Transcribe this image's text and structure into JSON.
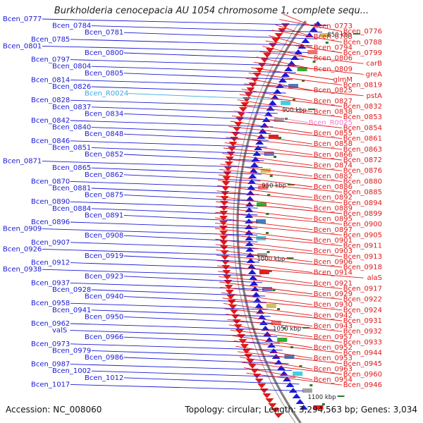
{
  "title": "Burkholderia cenocepacia AU 1054 chromosome 1, complete sequ...",
  "footer": {
    "accession": "Accession: NC_008060",
    "summary": "Topology: circular; Length: 3,294,563 bp; Genes: 3,034"
  },
  "colors": {
    "minus_strand": "#1a1ad6",
    "plus_strand": "#e01818",
    "rna_label": "#38a8e0",
    "rna_label_right": "#f07ad0",
    "backbone": "#808080",
    "kbp_tick": "#2a7a2a"
  },
  "kbp_marks": [
    "850 kbp",
    "900 kbp",
    "950 kbp",
    "1000 kbp",
    "1050 kbp",
    "1100 kbp"
  ],
  "left_labels": [
    "Bcen_0777",
    "Bcen_0784",
    "Bcen_0781",
    "Bcen_0785",
    "Bcen_0801",
    "Bcen_0800",
    "Bcen_0797",
    "Bcen_0804",
    "Bcen_0805",
    "Bcen_0814",
    "Bcen_0826",
    "Bcen_R0024",
    "Bcen_0828",
    "Bcen_0837",
    "Bcen_0834",
    "Bcen_0842",
    "Bcen_0840",
    "Bcen_0848",
    "Bcen_0846",
    "Bcen_0851",
    "Bcen_0852",
    "Bcen_0871",
    "Bcen_0865",
    "Bcen_0862",
    "Bcen_0870",
    "Bcen_0881",
    "Bcen_0875",
    "Bcen_0890",
    "Bcen_0884",
    "Bcen_0891",
    "Bcen_0896",
    "Bcen_0909",
    "Bcen_0908",
    "Bcen_0907",
    "Bcen_0926",
    "Bcen_0919",
    "Bcen_0912",
    "Bcen_0938",
    "Bcen_0923",
    "Bcen_0937",
    "Bcen_0928",
    "Bcen_0940",
    "Bcen_0958",
    "Bcen_0941",
    "Bcen_0950",
    "Bcen_0962",
    "valS",
    "Bcen_0966",
    "Bcen_0973",
    "Bcen_0979",
    "Bcen_0986",
    "Bcen_0987",
    "Bcen_1002",
    "Bcen_1012",
    "Bcen_1017"
  ],
  "right_labels": [
    "Bcen_0773",
    "Bcen_0776",
    "Bcen_0783",
    "Bcen_0788",
    "Bcen_0794",
    "Bcen_0799",
    "Bcen_0806",
    "carB",
    "Bcen_0809",
    "greA",
    "glmM",
    "Bcen_0819",
    "Bcen_0825",
    "pstA",
    "Bcen_0827",
    "Bcen_0832",
    "Bcen_0838",
    "Bcen_0853",
    "Bcen_R0025",
    "Bcen_0854",
    "Bcen_0855",
    "Bcen_0861",
    "Bcen_0858",
    "Bcen_0863",
    "Bcen_0866",
    "Bcen_0872",
    "Bcen_0874",
    "Bcen_0876",
    "Bcen_0882",
    "Bcen_0880",
    "Bcen_0886",
    "Bcen_0885",
    "Bcen_0892",
    "Bcen_0894",
    "Bcen_0889",
    "Bcen_0899",
    "Bcen_0895",
    "Bcen_0900",
    "Bcen_0897",
    "Bcen_0905",
    "Bcen_0901",
    "Bcen_0911",
    "Bcen_0903",
    "Bcen_0913",
    "Bcen_0906",
    "Bcen_0918",
    "Bcen_0914",
    "alaS",
    "Bcen_0921",
    "Bcen_0917",
    "Bcen_0929",
    "Bcen_0922",
    "Bcen_0930",
    "Bcen_0924",
    "Bcen_0942",
    "Bcen_0931",
    "Bcen_0943",
    "Bcen_0932",
    "Bcen_0957",
    "Bcen_0933",
    "Bcen_0952",
    "Bcen_0944",
    "Bcen_0953",
    "Bcen_0945",
    "Bcen_0963",
    "Bcen_0960",
    "Bcen_0954",
    "Bcen_0946"
  ]
}
